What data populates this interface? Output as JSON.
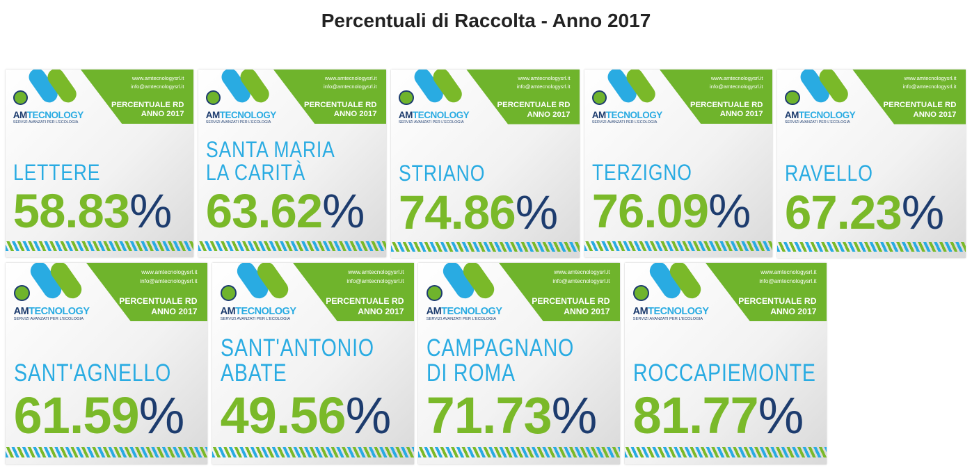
{
  "page": {
    "title": "Percentuali di Raccolta - Anno 2017"
  },
  "cards": [
    {
      "website": "www.amtecnologysrl.it",
      "email": "info@amtecnologysrl.it",
      "brand_am": "AM",
      "brand_rest": "TECNOLOGY",
      "tagline": "SERVIZI AVANZATI PER L'ECOLOGIA",
      "label": "PERCENTUALE RD",
      "year": "ANNO 2017",
      "name": [
        "LETTERE"
      ],
      "percentage": "58.83%"
    },
    {
      "website": "www.amtecnologysrl.it",
      "email": "info@amtecnologysrl.it",
      "brand_am": "AM",
      "brand_rest": "TECNOLOGY",
      "tagline": "SERVIZI AVANZATI PER L'ECOLOGIA",
      "label": "PERCENTUALE RD",
      "year": "ANNO 2017",
      "name": [
        "SANTA MARIA",
        "LA CARITÀ"
      ],
      "percentage": "63.62%"
    },
    {
      "website": "www.amtecnologysrl.it",
      "email": "info@amtecnologysrl.it",
      "brand_am": "AM",
      "brand_rest": "TECNOLOGY",
      "tagline": "SERVIZI AVANZATI PER L'ECOLOGIA",
      "label": "PERCENTUALE RD",
      "year": "ANNO 2017",
      "name": [
        "STRIANO"
      ],
      "percentage": "74.86%"
    },
    {
      "website": "www.amtecnologysrl.it",
      "email": "info@amtecnologysrl.it",
      "brand_am": "AM",
      "brand_rest": "TECNOLOGY",
      "tagline": "SERVIZI AVANZATI PER L'ECOLOGIA",
      "label": "PERCENTUALE RD",
      "year": "ANNO 2017",
      "name": [
        "TERZIGNO"
      ],
      "percentage": "76.09%"
    },
    {
      "website": "www.amtecnologysrl.it",
      "email": "info@amtecnologysrl.it",
      "brand_am": "AM",
      "brand_rest": "TECNOLOGY",
      "tagline": "SERVIZI AVANZATI PER L'ECOLOGIA",
      "label": "PERCENTUALE RD",
      "year": "ANNO 2017",
      "name": [
        "RAVELLO"
      ],
      "percentage": "67.23%"
    },
    {
      "website": "www.amtecnologysrl.it",
      "email": "info@amtecnologysrl.it",
      "brand_am": "AM",
      "brand_rest": "TECNOLOGY",
      "tagline": "SERVIZI AVANZATI PER L'ECOLOGIA",
      "label": "PERCENTUALE RD",
      "year": "ANNO 2017",
      "name": [
        "SANT'AGNELLO"
      ],
      "percentage": "61.59%"
    },
    {
      "website": "www.amtecnologysrl.it",
      "email": "info@amtecnologysrl.it",
      "brand_am": "AM",
      "brand_rest": "TECNOLOGY",
      "tagline": "SERVIZI AVANZATI PER L'ECOLOGIA",
      "label": "PERCENTUALE RD",
      "year": "ANNO 2017",
      "name": [
        "SANT'ANTONIO",
        "ABATE"
      ],
      "percentage": "49.56%"
    },
    {
      "website": "www.amtecnologysrl.it",
      "email": "info@amtecnologysrl.it",
      "brand_am": "AM",
      "brand_rest": "TECNOLOGY",
      "tagline": "SERVIZI AVANZATI PER L'ECOLOGIA",
      "label": "PERCENTUALE RD",
      "year": "ANNO 2017",
      "name": [
        "CAMPAGNANO",
        "DI ROMA"
      ],
      "percentage": "71.73%"
    },
    {
      "website": "www.amtecnologysrl.it",
      "email": "info@amtecnologysrl.it",
      "brand_am": "AM",
      "brand_rest": "TECNOLOGY",
      "tagline": "SERVIZI AVANZATI PER L'ECOLOGIA",
      "label": "PERCENTUALE RD",
      "year": "ANNO 2017",
      "name": [
        "ROCCAPIEMONTE"
      ],
      "percentage": "81.77%"
    }
  ]
}
